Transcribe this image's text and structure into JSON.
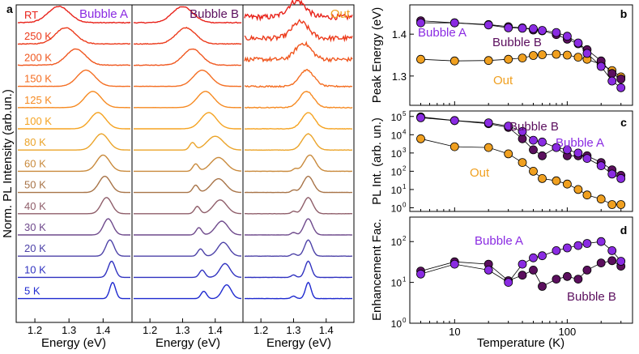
{
  "colors": {
    "bubbleA": "#8a2be2",
    "bubbleB": "#5b0f5e",
    "out": "#f0a020",
    "axis": "#000000"
  },
  "chart_data": [
    {
      "id": "a",
      "type": "line",
      "panel_label": "a",
      "ylabel": "Norm. PL Intensity (arb.un.)",
      "xlabel": "Energy (eV)",
      "xticks": [
        "1.2",
        "1.3",
        "1.4"
      ],
      "xlim": [
        1.15,
        1.48
      ],
      "sub_panels": [
        {
          "title": "Bubble A",
          "title_color": "#8a2be2"
        },
        {
          "title": "Bubble B",
          "title_color": "#5b0f5e"
        },
        {
          "title": "Out",
          "title_color": "#f0a020"
        }
      ],
      "temperatures": [
        {
          "label": "RT",
          "color": "#e8221a",
          "peakA": 1.27,
          "peakB": 1.3,
          "peakOut": 1.31,
          "noise": 0.55
        },
        {
          "label": "250 K",
          "color": "#ec3b1c",
          "peakA": 1.29,
          "peakB": 1.31,
          "peakOut": 1.32,
          "noise": 0.5
        },
        {
          "label": "200 K",
          "color": "#f0571f",
          "peakA": 1.32,
          "peakB": 1.33,
          "peakOut": 1.33,
          "noise": 0.4
        },
        {
          "label": "150 K",
          "color": "#f46e22",
          "peakA": 1.35,
          "peakB": 1.36,
          "peakOut": 1.34,
          "noise": 0.15
        },
        {
          "label": "125 K",
          "color": "#f68a21",
          "peakA": 1.37,
          "peakB": 1.37,
          "peakOut": 1.34,
          "noise": 0.08
        },
        {
          "label": "100 K",
          "color": "#f5a321",
          "peakA": 1.385,
          "peakB": 1.38,
          "peakOut": 1.345,
          "noise": 0.05
        },
        {
          "label": "80 K",
          "color": "#eba42a",
          "peakA": 1.395,
          "peakB": 1.4,
          "peakOut": 1.345,
          "noise": 0.03
        },
        {
          "label": "60 K",
          "color": "#c98a3c",
          "peakA": 1.4,
          "peakB": 1.41,
          "peakOut": 1.35,
          "noise": 0.02
        },
        {
          "label": "50 K",
          "color": "#a87448",
          "peakA": 1.405,
          "peakB": 1.41,
          "peakOut": 1.345,
          "noise": 0.02
        },
        {
          "label": "40 K",
          "color": "#8f5e6a",
          "peakA": 1.41,
          "peakB": 1.415,
          "peakOut": 1.345,
          "noise": 0.02
        },
        {
          "label": "30 K",
          "color": "#6f4a8c",
          "peakA": 1.415,
          "peakB": 1.42,
          "peakOut": 1.345,
          "noise": 0.02
        },
        {
          "label": "20 K",
          "color": "#4d42a8",
          "peakA": 1.42,
          "peakB": 1.425,
          "peakOut": 1.345,
          "noise": 0.02
        },
        {
          "label": "10 K",
          "color": "#3032c0",
          "peakA": 1.425,
          "peakB": 1.43,
          "peakOut": 1.345,
          "noise": 0.02
        },
        {
          "label": "5 K",
          "color": "#1f2ad0",
          "peakA": 1.428,
          "peakB": 1.435,
          "peakOut": 1.345,
          "noise": 0.02
        }
      ]
    },
    {
      "id": "b",
      "type": "scatter",
      "panel_label": "b",
      "ylabel": "Peak Energy (eV)",
      "xscale": "log",
      "xlim": [
        4,
        380
      ],
      "ylim": [
        1.23,
        1.47
      ],
      "yticks": [
        "1.3",
        "1.4"
      ],
      "ytick_values": [
        1.3,
        1.4
      ],
      "annotations": [
        {
          "text": "Bubble A",
          "color": "#8a2be2"
        },
        {
          "text": "Bubble B",
          "color": "#5b0f5e"
        },
        {
          "text": "Out",
          "color": "#f0a020"
        }
      ],
      "series": [
        {
          "name": "Out",
          "color": "#f0a020",
          "x": [
            5,
            10,
            20,
            30,
            40,
            50,
            60,
            80,
            100,
            125,
            150,
            200,
            250,
            300
          ],
          "y": [
            1.34,
            1.336,
            1.337,
            1.34,
            1.343,
            1.349,
            1.351,
            1.352,
            1.35,
            1.345,
            1.34,
            1.328,
            1.313,
            1.298
          ]
        },
        {
          "name": "Bubble B",
          "color": "#5b0f5e",
          "x": [
            5,
            10,
            20,
            30,
            40,
            50,
            60,
            80,
            100,
            125,
            150,
            200,
            250,
            300
          ],
          "y": [
            1.432,
            1.427,
            1.423,
            1.418,
            1.415,
            1.41,
            1.408,
            1.399,
            1.388,
            1.377,
            1.363,
            1.336,
            1.306,
            1.293
          ]
        },
        {
          "name": "Bubble A",
          "color": "#8a2be2",
          "x": [
            5,
            10,
            20,
            30,
            40,
            50,
            60,
            80,
            100,
            125,
            150,
            200,
            250,
            300
          ],
          "y": [
            1.427,
            1.427,
            1.422,
            1.415,
            1.414,
            1.413,
            1.409,
            1.404,
            1.395,
            1.379,
            1.354,
            1.323,
            1.288,
            1.272
          ]
        }
      ]
    },
    {
      "id": "c",
      "type": "scatter",
      "panel_label": "c",
      "ylabel": "PL Int. (arb. un.)",
      "xscale": "log",
      "yscale": "log",
      "xlim": [
        4,
        380
      ],
      "ylim_log10": [
        -0.2,
        5.3
      ],
      "yticks": [
        "10",
        "10",
        "10",
        "10",
        "10",
        "10"
      ],
      "ytick_exponents": [
        "0",
        "1",
        "2",
        "3",
        "4",
        "5"
      ],
      "annotations": [
        {
          "text": "Bubble B",
          "color": "#5b0f5e"
        },
        {
          "text": "Bubble A",
          "color": "#8a2be2"
        },
        {
          "text": "Out",
          "color": "#f0a020"
        }
      ],
      "series": [
        {
          "name": "Out",
          "color": "#f0a020",
          "x": [
            5,
            10,
            20,
            30,
            40,
            50,
            60,
            80,
            100,
            125,
            150,
            200,
            250,
            300
          ],
          "y": [
            6000,
            2200,
            2000,
            900,
            300,
            100,
            40,
            30,
            20,
            10,
            5,
            3,
            1.5,
            1.5
          ]
        },
        {
          "name": "Bubble B",
          "color": "#5b0f5e",
          "x": [
            5,
            10,
            20,
            30,
            40,
            50,
            60,
            80,
            100,
            125,
            150,
            200,
            250,
            300
          ],
          "y": [
            95000,
            60000,
            40000,
            25000,
            6000,
            1500,
            700,
            2000,
            700,
            700,
            700,
            300,
            120,
            60
          ]
        },
        {
          "name": "Bubble A",
          "color": "#8a2be2",
          "x": [
            5,
            10,
            20,
            30,
            40,
            50,
            60,
            80,
            100,
            125,
            150,
            200,
            250,
            300
          ],
          "y": [
            85000,
            60000,
            45000,
            30000,
            15000,
            5000,
            4000,
            2000,
            1500,
            1000,
            500,
            200,
            70,
            40
          ]
        }
      ]
    },
    {
      "id": "d",
      "type": "scatter",
      "panel_label": "d",
      "ylabel": "Enhancement Fac.",
      "xlabel": "Temperature (K)",
      "xscale": "log",
      "yscale": "log",
      "xlim": [
        4,
        380
      ],
      "ylim_log10": [
        0,
        2.6
      ],
      "xticks": [
        "10",
        "100"
      ],
      "xtick_values": [
        10,
        100
      ],
      "yticks": [
        "10",
        "10",
        "10"
      ],
      "ytick_exponents": [
        "0",
        "1",
        "2"
      ],
      "annotations": [
        {
          "text": "Bubble A",
          "color": "#8a2be2"
        },
        {
          "text": "Bubble B",
          "color": "#5b0f5e"
        }
      ],
      "series": [
        {
          "name": "Bubble B",
          "color": "#5b0f5e",
          "x": [
            5,
            10,
            20,
            30,
            40,
            50,
            60,
            80,
            100,
            125,
            150,
            200,
            250,
            300
          ],
          "y": [
            19,
            32,
            28,
            11,
            15,
            20,
            8,
            12,
            14,
            12,
            20,
            30,
            34,
            25
          ]
        },
        {
          "name": "Bubble A",
          "color": "#8a2be2",
          "x": [
            5,
            10,
            20,
            30,
            40,
            50,
            60,
            80,
            100,
            125,
            150,
            200,
            250,
            300
          ],
          "y": [
            16,
            28,
            20,
            10,
            28,
            40,
            45,
            60,
            70,
            80,
            90,
            100,
            60,
            33
          ]
        }
      ]
    }
  ]
}
